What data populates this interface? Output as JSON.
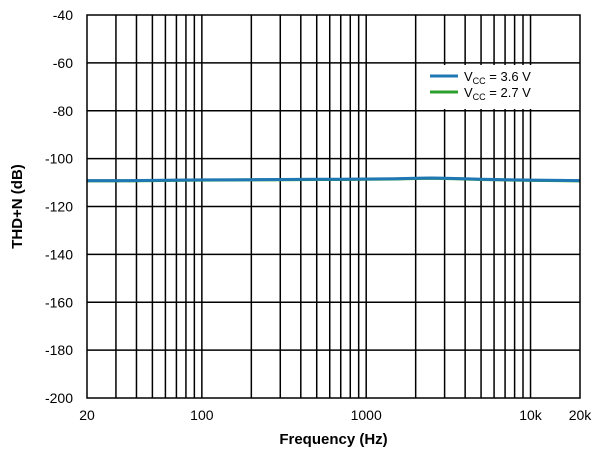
{
  "chart_data": {
    "type": "line",
    "xlabel": "Frequency (Hz)",
    "ylabel": "THD+N (dB)",
    "x_scale": "log",
    "xlim": [
      20,
      20000
    ],
    "ylim": [
      -200,
      -40
    ],
    "x_ticks": [
      20,
      100,
      1000,
      10000,
      20000
    ],
    "x_tick_labels": [
      "20",
      "100",
      "1000",
      "10k",
      "20k"
    ],
    "y_ticks": [
      -40,
      -60,
      -80,
      -100,
      -120,
      -140,
      -160,
      -180,
      -200
    ],
    "grid": true,
    "legend_position": "top-right",
    "series": [
      {
        "name_main": "V",
        "name_sub": "CC",
        "name_rest": " = 3.6 V",
        "color": "#1f77b4",
        "x": [
          20,
          30,
          50,
          70,
          100,
          200,
          300,
          500,
          700,
          1000,
          1500,
          2000,
          2500,
          3000,
          4000,
          5000,
          7000,
          10000,
          15000,
          20000
        ],
        "y": [
          -109.2,
          -109.2,
          -109.1,
          -109.0,
          -108.9,
          -108.8,
          -108.7,
          -108.6,
          -108.6,
          -108.5,
          -108.4,
          -108.2,
          -108.1,
          -108.2,
          -108.4,
          -108.6,
          -108.8,
          -109.0,
          -109.1,
          -109.2
        ]
      },
      {
        "name_main": "V",
        "name_sub": "CC",
        "name_rest": " = 2.7 V",
        "color": "#2ca02c",
        "x": [
          20,
          30,
          50,
          70,
          100,
          200,
          300,
          500,
          700,
          1000,
          1500,
          2000,
          2500,
          3000,
          4000,
          5000,
          7000,
          10000,
          15000,
          20000
        ],
        "y": [
          -109.3,
          -109.3,
          -109.2,
          -109.1,
          -109.0,
          -108.9,
          -108.8,
          -108.7,
          -108.7,
          -108.6,
          -108.5,
          -108.3,
          -108.2,
          -108.3,
          -108.5,
          -108.7,
          -108.9,
          -109.1,
          -109.2,
          -109.3
        ]
      }
    ]
  }
}
